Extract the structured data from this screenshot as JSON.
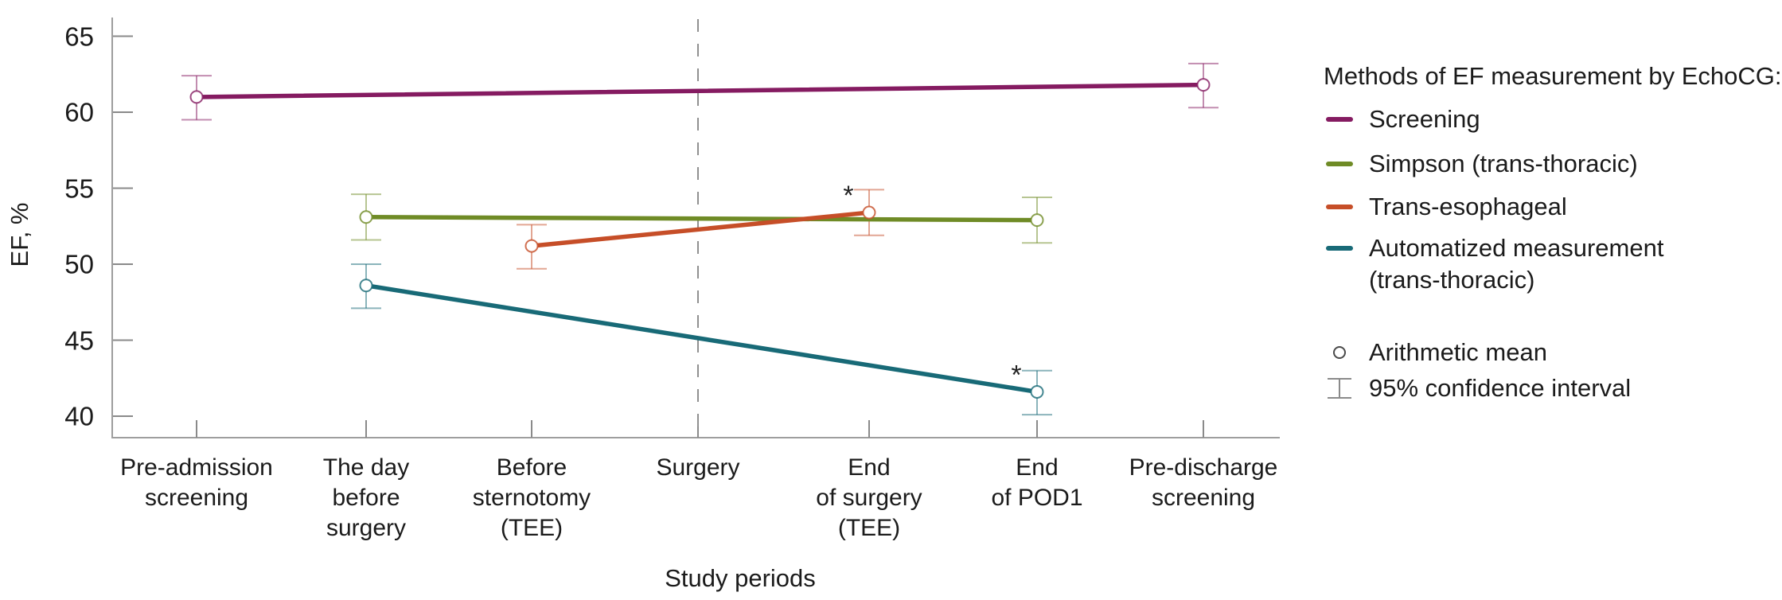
{
  "figure": {
    "y_axis_title": "EF, %",
    "x_axis_title": "Study periods"
  },
  "legend": {
    "title": "Methods of EF measurement by EchoCG:",
    "items": [
      {
        "label": "Screening",
        "color": "#851b61"
      },
      {
        "label": "Simpson (trans-thoracic)",
        "color": "#6f8b26"
      },
      {
        "label": "Trans-esophageal",
        "color": "#c64e28"
      },
      {
        "label": "Automatized measurement\n(trans-thoracic)",
        "color": "#186a77"
      }
    ],
    "markers": [
      {
        "label": "Arithmetic mean",
        "symbol": "open-circle"
      },
      {
        "label": "95% confidence interval",
        "symbol": "error-bar"
      }
    ]
  },
  "chart_data": {
    "type": "line",
    "title": "",
    "xlabel": "Study periods",
    "ylabel": "EF, %",
    "ylim": [
      38.5,
      66
    ],
    "yticks": [
      65,
      60,
      55,
      50,
      45,
      40
    ],
    "grid": false,
    "legend_position": "right",
    "categories": [
      "Pre-admission\nscreening",
      "The day\nbefore\nsurgery",
      "Before\nsternotomy\n(TEE)",
      "Surgery",
      "End\nof surgery\n(TEE)",
      "End\nof POD1",
      "Pre-discharge\nscreening"
    ],
    "vline": {
      "at_category": "Surgery",
      "style": "dashed",
      "color": "#909090"
    },
    "error_bars": "95% confidence interval",
    "marker": "arithmetic mean (open circle)",
    "series": [
      {
        "name": "Screening",
        "slug": "screening",
        "color": "#851b61",
        "points": [
          {
            "x": 0,
            "mean": 61.0,
            "lo": 59.5,
            "hi": 62.4
          },
          {
            "x": 6,
            "mean": 61.8,
            "lo": 60.3,
            "hi": 63.2
          }
        ]
      },
      {
        "name": "Simpson (trans-thoracic)",
        "slug": "simpson-trans-thoracic",
        "color": "#6f8b26",
        "points": [
          {
            "x": 1,
            "mean": 53.1,
            "lo": 51.6,
            "hi": 54.6
          },
          {
            "x": 5,
            "mean": 52.9,
            "lo": 51.4,
            "hi": 54.4
          }
        ]
      },
      {
        "name": "Trans-esophageal",
        "slug": "trans-esophageal",
        "color": "#c64e28",
        "points": [
          {
            "x": 2,
            "mean": 51.2,
            "lo": 49.7,
            "hi": 52.6
          },
          {
            "x": 4,
            "mean": 53.4,
            "lo": 51.9,
            "hi": 54.9,
            "annotation": "*"
          }
        ]
      },
      {
        "name": "Automatized measurement (trans-thoracic)",
        "slug": "automatized-trans-thoracic",
        "color": "#186a77",
        "points": [
          {
            "x": 1,
            "mean": 48.6,
            "lo": 47.1,
            "hi": 50.0
          },
          {
            "x": 5,
            "mean": 41.6,
            "lo": 40.1,
            "hi": 43.0,
            "annotation": "*"
          }
        ]
      }
    ]
  }
}
